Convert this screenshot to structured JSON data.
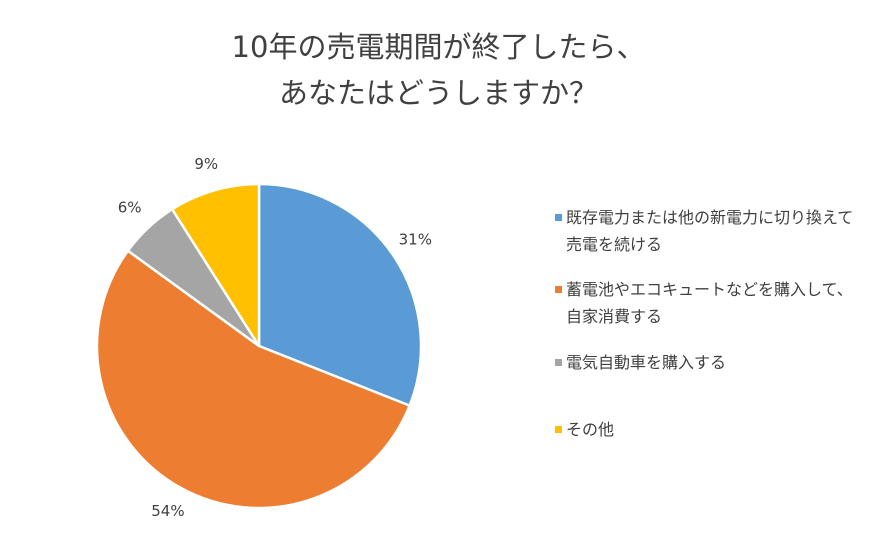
{
  "chart_data": {
    "type": "pie",
    "title": [
      "10年の売電期間が終了したら、",
      "あなたはどうしますか？"
    ],
    "series": [
      {
        "name": "既存電力または他の新電力に切り換えて売電を続ける",
        "value": 31,
        "label": "31%",
        "color": "#5b9bd5"
      },
      {
        "name": "蓄電池やエコキュートなどを購入して、自家消費する",
        "value": 54,
        "label": "54%",
        "color": "#ed7d31"
      },
      {
        "name": "電気自動車を購入する",
        "value": 6,
        "label": "6%",
        "color": "#a5a5a5"
      },
      {
        "name": "その他",
        "value": 9,
        "label": "9%",
        "color": "#ffc000"
      }
    ],
    "legend_position": "right"
  }
}
